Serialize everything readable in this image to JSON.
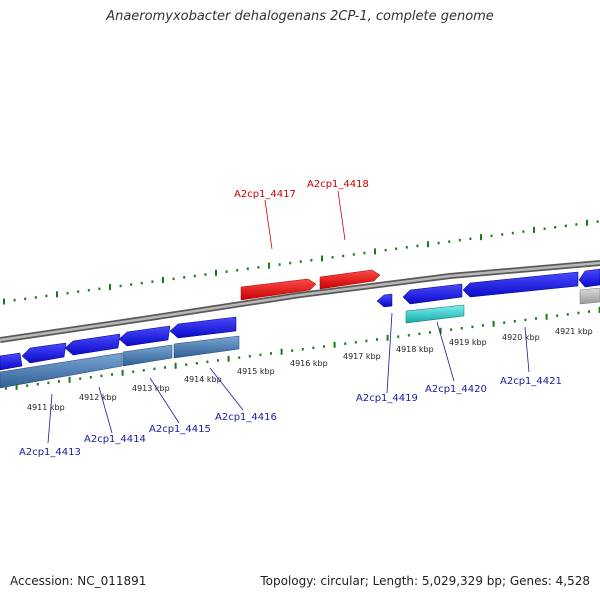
{
  "title": "Anaeromyxobacter dehalogenans 2CP-1, complete genome",
  "footer": {
    "accession": "Accession: NC_011891",
    "summary": "Topology: circular; Length: 5,029,329 bp; Genes: 4,528"
  },
  "colors": {
    "forward_gene": "#e00000",
    "reverse_gene": "#1010e0",
    "reverse_cds_track": "#4a7fb5",
    "highlight_gene": "#22c8c8",
    "neutral_gene": "#b0b0b0",
    "backbone": "#8a8a8a",
    "ticks": "#1a7a1a",
    "forward_label": "#cc0000",
    "reverse_label": "#1a1aa0"
  },
  "forward_gene_labels": [
    "A2cp1_4417",
    "A2cp1_4418"
  ],
  "reverse_gene_labels": [
    "A2cp1_4413",
    "A2cp1_4414",
    "A2cp1_4415",
    "A2cp1_4416",
    "A2cp1_4419",
    "A2cp1_4420",
    "A2cp1_4421"
  ],
  "kbp_labels": [
    "4911 kbp",
    "4912 kbp",
    "4913 kbp",
    "4914 kbp",
    "4915 kbp",
    "4916 kbp",
    "4917 kbp",
    "4918 kbp",
    "4919 kbp",
    "4920 kbp",
    "4921 kbp"
  ]
}
